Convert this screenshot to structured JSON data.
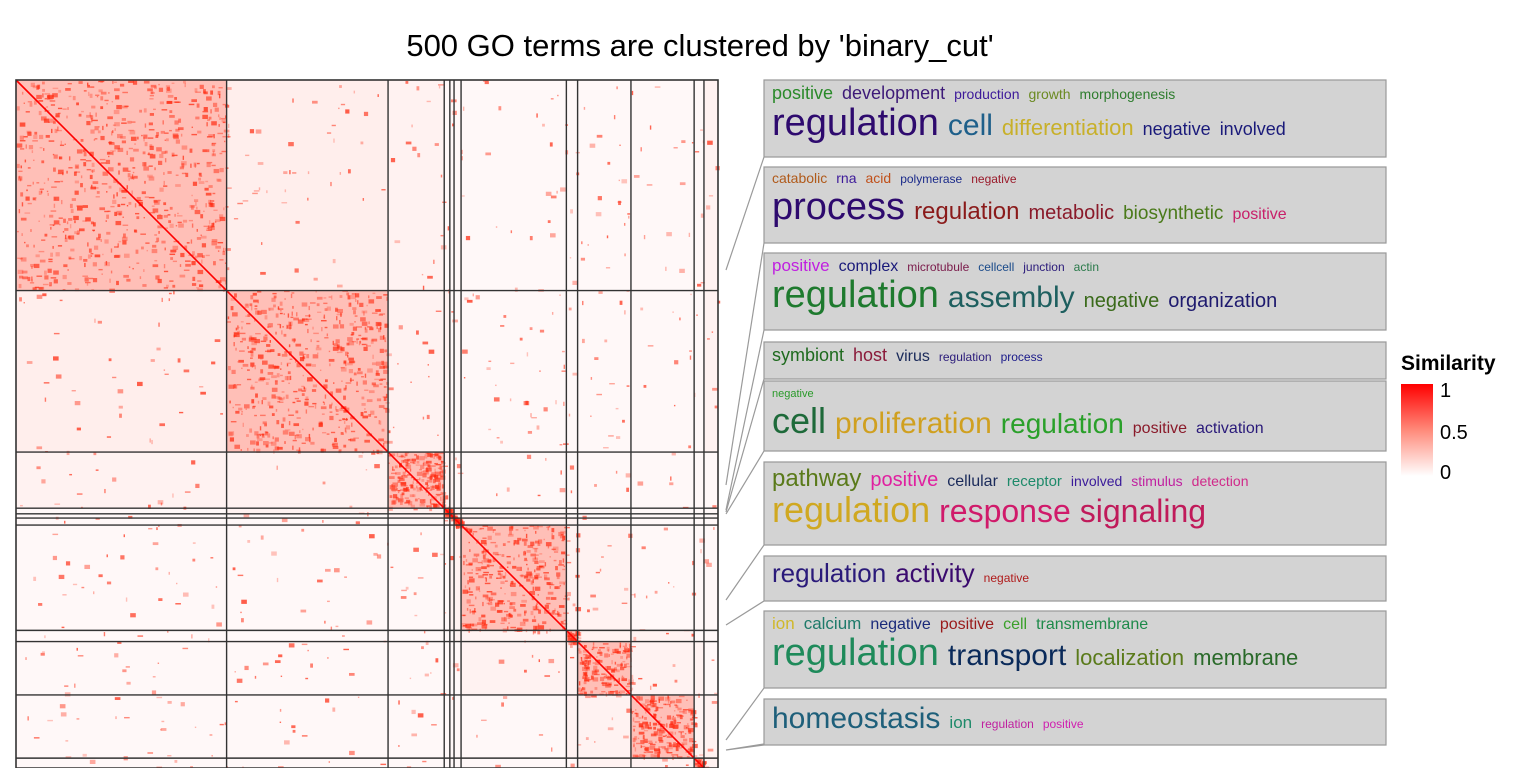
{
  "title": "500 GO terms are clustered by 'binary_cut'",
  "legend": {
    "title": "Similarity",
    "ticks": [
      "1",
      "0.5",
      "0"
    ],
    "colors": [
      "#ff0000",
      "#ff8a7a",
      "#ffffff"
    ]
  },
  "chart_data": {
    "type": "heatmap",
    "n_terms": 500,
    "cluster_sizes": [
      150,
      115,
      40,
      4,
      3,
      5,
      75,
      8,
      38,
      45,
      7,
      10
    ],
    "value_range": [
      0,
      1
    ],
    "cluster_word_clouds": [
      {
        "lines": [
          [
            {
              "text": "positive",
              "size": 18,
              "color": "#2a8a2a"
            },
            {
              "text": "development",
              "size": 18,
              "color": "#3d1a78"
            },
            {
              "text": "production",
              "size": 14,
              "color": "#3d1a9a"
            },
            {
              "text": "growth",
              "size": 14,
              "color": "#6b8a22"
            },
            {
              "text": "morphogenesis",
              "size": 14,
              "color": "#2e7d2e"
            }
          ],
          [
            {
              "text": "regulation",
              "size": 38,
              "color": "#2e0a6e"
            },
            {
              "text": "cell",
              "size": 30,
              "color": "#1e5f8a"
            },
            {
              "text": "differentiation",
              "size": 22,
              "color": "#c8b02a"
            },
            {
              "text": "negative",
              "size": 18,
              "color": "#1a1a7a"
            },
            {
              "text": "involved",
              "size": 18,
              "color": "#1a1a7a"
            }
          ]
        ]
      },
      {
        "lines": [
          [
            {
              "text": "catabolic",
              "size": 14,
              "color": "#b05a1a"
            },
            {
              "text": "rna",
              "size": 14,
              "color": "#3d1a9a"
            },
            {
              "text": "acid",
              "size": 14,
              "color": "#c0501a"
            },
            {
              "text": "polymerase",
              "size": 12,
              "color": "#1a2a8a"
            },
            {
              "text": "negative",
              "size": 12,
              "color": "#9a1a2a"
            }
          ],
          [
            {
              "text": "process",
              "size": 38,
              "color": "#2e0a6e"
            },
            {
              "text": "regulation",
              "size": 24,
              "color": "#8a1a1a"
            },
            {
              "text": "metabolic",
              "size": 20,
              "color": "#8a1a2a"
            },
            {
              "text": "biosynthetic",
              "size": 19,
              "color": "#4a7a1a"
            },
            {
              "text": "positive",
              "size": 16,
              "color": "#c8206a"
            }
          ]
        ]
      },
      {
        "lines": [
          [
            {
              "text": "positive",
              "size": 17,
              "color": "#c020e0"
            },
            {
              "text": "complex",
              "size": 16,
              "color": "#1a1a7a"
            },
            {
              "text": "microtubule",
              "size": 12,
              "color": "#7a1a4a"
            },
            {
              "text": "cellcell",
              "size": 12,
              "color": "#1a4a8a"
            },
            {
              "text": "junction",
              "size": 12,
              "color": "#2a1a7a"
            },
            {
              "text": "actin",
              "size": 12,
              "color": "#2a7a4a"
            }
          ],
          [
            {
              "text": "regulation",
              "size": 38,
              "color": "#1e7a2e"
            },
            {
              "text": "assembly",
              "size": 30,
              "color": "#1e5f5f"
            },
            {
              "text": "negative",
              "size": 20,
              "color": "#3a6a1a"
            },
            {
              "text": "organization",
              "size": 20,
              "color": "#1e1a6e"
            }
          ]
        ]
      },
      {
        "lines": [
          [
            {
              "text": "symbiont",
              "size": 18,
              "color": "#1e6a1e"
            },
            {
              "text": "host",
              "size": 18,
              "color": "#8a1a3a"
            },
            {
              "text": "virus",
              "size": 16,
              "color": "#1a2a5a"
            },
            {
              "text": "regulation",
              "size": 12,
              "color": "#2a1a7a"
            },
            {
              "text": "process",
              "size": 12,
              "color": "#1a1a8a"
            }
          ]
        ]
      },
      {
        "lines": [
          [
            {
              "text": "negative",
              "size": 11,
              "color": "#2a9a2a"
            }
          ],
          [
            {
              "text": "cell",
              "size": 36,
              "color": "#1e6a3a"
            },
            {
              "text": "proliferation",
              "size": 30,
              "color": "#d0a020"
            },
            {
              "text": "regulation",
              "size": 28,
              "color": "#2aa02a"
            },
            {
              "text": "positive",
              "size": 16,
              "color": "#8a1a2a"
            },
            {
              "text": "activation",
              "size": 16,
              "color": "#2a1a7a"
            }
          ]
        ]
      },
      {
        "lines": [
          [
            {
              "text": "pathway",
              "size": 24,
              "color": "#5a7a1a"
            },
            {
              "text": "positive",
              "size": 20,
              "color": "#e020a0"
            },
            {
              "text": "cellular",
              "size": 16,
              "color": "#1a2a5a"
            },
            {
              "text": "receptor",
              "size": 15,
              "color": "#1e8a6a"
            },
            {
              "text": "involved",
              "size": 14,
              "color": "#3a1a9a"
            },
            {
              "text": "stimulus",
              "size": 14,
              "color": "#c020a0"
            },
            {
              "text": "detection",
              "size": 14,
              "color": "#d02a8a"
            }
          ],
          [
            {
              "text": "regulation",
              "size": 36,
              "color": "#d0a820"
            },
            {
              "text": "response",
              "size": 32,
              "color": "#d01a6a"
            },
            {
              "text": "signaling",
              "size": 32,
              "color": "#c01a5a"
            }
          ]
        ]
      },
      {
        "lines": [
          [
            {
              "text": "regulation",
              "size": 26,
              "color": "#2a1a7a"
            },
            {
              "text": "activity",
              "size": 26,
              "color": "#3a0a6e"
            },
            {
              "text": "negative",
              "size": 12,
              "color": "#b01a1a"
            }
          ]
        ]
      },
      {
        "lines": [
          [
            {
              "text": "ion",
              "size": 17,
              "color": "#d0b82a"
            },
            {
              "text": "calcium",
              "size": 17,
              "color": "#1e7a6a"
            },
            {
              "text": "negative",
              "size": 16,
              "color": "#1a2a7a"
            },
            {
              "text": "positive",
              "size": 16,
              "color": "#9a1a1a"
            },
            {
              "text": "cell",
              "size": 16,
              "color": "#3aa02a"
            },
            {
              "text": "transmembrane",
              "size": 16,
              "color": "#1e8a4a"
            }
          ],
          [
            {
              "text": "regulation",
              "size": 38,
              "color": "#1e8a5a"
            },
            {
              "text": "transport",
              "size": 30,
              "color": "#0a2a5a"
            },
            {
              "text": "localization",
              "size": 22,
              "color": "#5a7a1a"
            },
            {
              "text": "membrane",
              "size": 22,
              "color": "#2a6a2a"
            }
          ]
        ]
      },
      {
        "lines": [
          [
            {
              "text": "homeostasis",
              "size": 30,
              "color": "#1e5f7a"
            },
            {
              "text": "ion",
              "size": 17,
              "color": "#1e8a6a"
            },
            {
              "text": "regulation",
              "size": 12,
              "color": "#c020a0"
            },
            {
              "text": "positive",
              "size": 12,
              "color": "#d020b0"
            }
          ]
        ]
      }
    ]
  }
}
